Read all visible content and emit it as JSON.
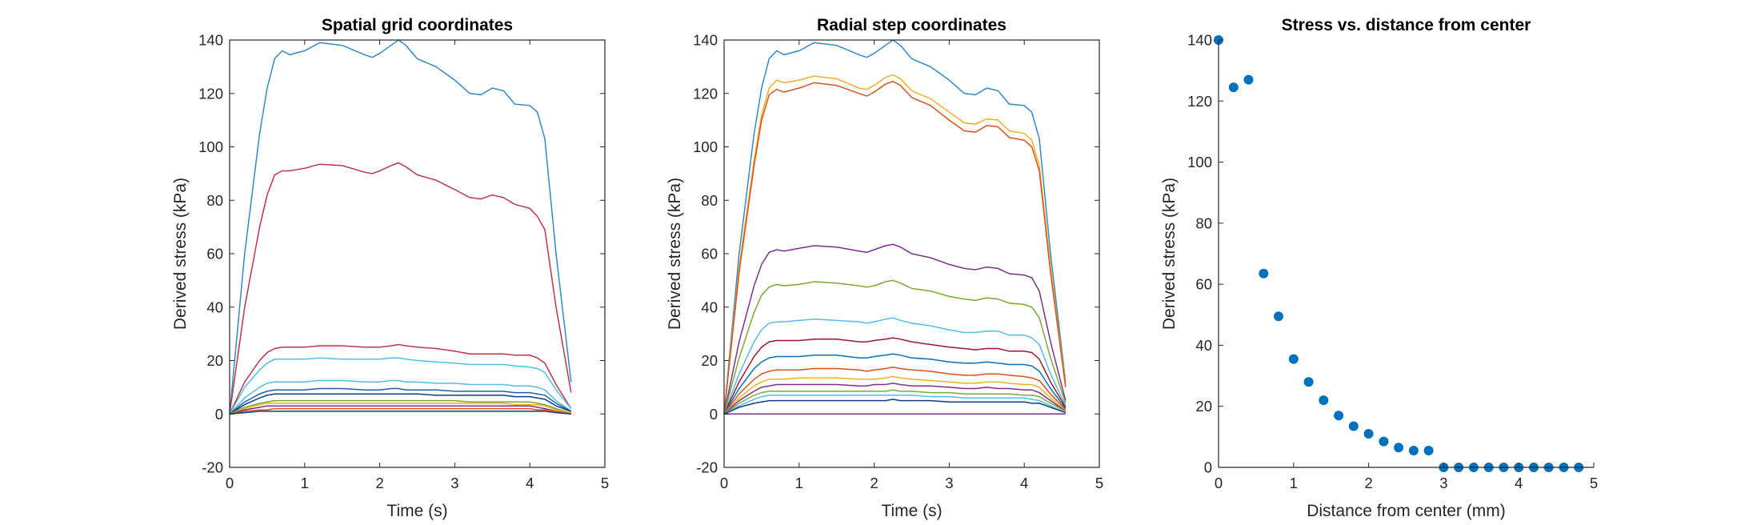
{
  "chart_data": [
    {
      "type": "line",
      "title": "Spatial grid coordinates",
      "xlabel": "Time (s)",
      "ylabel": "Derived stress (kPa)",
      "xlim": [
        0,
        5
      ],
      "ylim": [
        -20,
        140
      ],
      "xticks": [
        "0",
        "1",
        "2",
        "3",
        "4",
        "5"
      ],
      "yticks": [
        "-20",
        "0",
        "20",
        "40",
        "60",
        "80",
        "100",
        "120",
        "140"
      ],
      "x": [
        0,
        0.2,
        0.4,
        0.5,
        0.6,
        0.7,
        0.8,
        1.0,
        1.2,
        1.5,
        1.8,
        1.9,
        2.0,
        2.15,
        2.25,
        2.35,
        2.5,
        2.75,
        3.0,
        3.2,
        3.35,
        3.5,
        3.65,
        3.8,
        4.0,
        4.1,
        4.2,
        4.35,
        4.55
      ],
      "series": [
        {
          "color": "#2e8bc8",
          "values": [
            0,
            60,
            105,
            122,
            133,
            136,
            134.5,
            136,
            139,
            138,
            134.5,
            133.5,
            135,
            138,
            140,
            138,
            133,
            130,
            125,
            120,
            119.5,
            122,
            121,
            116,
            115.5,
            113,
            103,
            60,
            12
          ]
        },
        {
          "color": "#c0334a",
          "values": [
            0,
            40,
            70,
            82,
            89.5,
            91,
            91,
            92,
            93.5,
            93,
            90.5,
            90,
            91,
            93,
            94,
            92.5,
            89.5,
            87.5,
            84,
            81,
            80.5,
            82,
            81,
            78.5,
            77,
            74,
            69,
            40,
            8
          ]
        },
        {
          "color": "#c0334a",
          "values": [
            0,
            12,
            20,
            23,
            24.5,
            25,
            25,
            25,
            25.5,
            25.5,
            25,
            25,
            25,
            25.5,
            26,
            25.5,
            25,
            24.5,
            23.5,
            22.5,
            22.5,
            22.5,
            22.5,
            22,
            22,
            21,
            19,
            11,
            2
          ]
        },
        {
          "color": "#4dbeee",
          "values": [
            0,
            10,
            16.5,
            19,
            20.5,
            20.5,
            20.5,
            20.5,
            21,
            20.5,
            20.5,
            20.5,
            20.5,
            21,
            21,
            20.5,
            20,
            19.5,
            19,
            18.5,
            18.5,
            18.5,
            18.5,
            18,
            17.5,
            17,
            15.5,
            9,
            2
          ]
        },
        {
          "color": "#4dbeee",
          "values": [
            0,
            6,
            10,
            11.5,
            12,
            12,
            12,
            12,
            12.5,
            12.5,
            12,
            12,
            12,
            12.5,
            12.5,
            12,
            12,
            11.5,
            11.5,
            11,
            11,
            11,
            11,
            10.5,
            10.5,
            10,
            9,
            5,
            1
          ]
        },
        {
          "color": "#1f5fa8",
          "values": [
            0,
            4.5,
            7.5,
            8.5,
            9,
            9,
            9,
            9,
            9.5,
            9.5,
            9,
            9,
            9,
            9.5,
            9.5,
            9,
            9,
            9,
            8.5,
            8.5,
            8.5,
            8.5,
            8.5,
            8,
            8,
            7.5,
            7,
            4,
            1
          ]
        },
        {
          "color": "#0b3d8a",
          "values": [
            0,
            3.5,
            6,
            7,
            7.5,
            7.5,
            7.5,
            7.5,
            7.5,
            7.5,
            7.5,
            7.5,
            7.5,
            7.5,
            7.5,
            7.5,
            7.5,
            7,
            7,
            7,
            7,
            7,
            7,
            6.5,
            6.5,
            6,
            5.5,
            3,
            1
          ]
        },
        {
          "color": "#77ac30",
          "values": [
            0,
            2.5,
            4,
            4.5,
            5,
            5,
            5,
            5,
            5,
            5,
            5,
            5,
            5,
            5,
            5,
            5,
            5,
            5,
            5,
            4.5,
            4.5,
            4.5,
            4.5,
            4.5,
            4.5,
            4,
            3.5,
            2,
            0.5
          ]
        },
        {
          "color": "#edb120",
          "values": [
            0,
            2,
            3.5,
            4,
            4,
            4,
            4,
            4,
            4,
            4,
            4,
            4,
            4,
            4,
            4,
            4,
            4,
            4,
            4,
            4,
            4,
            4,
            4,
            3.5,
            3.5,
            3.5,
            3,
            1.5,
            0.5
          ]
        },
        {
          "color": "#7e2f8e",
          "values": [
            0,
            1.5,
            2.5,
            3,
            3,
            3,
            3,
            3,
            3,
            3,
            3,
            3,
            3,
            3,
            3,
            3,
            3,
            3,
            3,
            3,
            3,
            3,
            3,
            3,
            3,
            2.5,
            2,
            1,
            0
          ]
        },
        {
          "color": "#d95319",
          "values": [
            0,
            1,
            1.5,
            1.5,
            2,
            2,
            2,
            2,
            2,
            2,
            2,
            2,
            2,
            2,
            2,
            2,
            2,
            2,
            2,
            2,
            2,
            2,
            2,
            2,
            2,
            1.5,
            1.5,
            1,
            0
          ]
        },
        {
          "color": "#0b3d8a",
          "values": [
            0,
            0.5,
            1,
            1,
            1,
            1,
            1,
            1,
            1,
            1,
            1,
            1,
            1,
            1,
            1,
            1,
            1,
            1,
            1,
            1,
            1,
            1,
            1,
            1,
            1,
            1,
            1,
            0.5,
            0
          ]
        }
      ]
    },
    {
      "type": "line",
      "title": "Radial step coordinates",
      "xlabel": "Time (s)",
      "ylabel": "Derived stress (kPa)",
      "xlim": [
        0,
        5
      ],
      "ylim": [
        -20,
        140
      ],
      "xticks": [
        "0",
        "1",
        "2",
        "3",
        "4",
        "5"
      ],
      "yticks": [
        "-20",
        "0",
        "20",
        "40",
        "60",
        "80",
        "100",
        "120",
        "140"
      ],
      "x": [
        0,
        0.2,
        0.4,
        0.5,
        0.6,
        0.7,
        0.8,
        1.0,
        1.2,
        1.5,
        1.8,
        1.9,
        2.0,
        2.15,
        2.25,
        2.35,
        2.5,
        2.75,
        3.0,
        3.2,
        3.35,
        3.5,
        3.65,
        3.8,
        4.0,
        4.1,
        4.2,
        4.35,
        4.55
      ],
      "series": [
        {
          "color": "#2e8bc8",
          "values": [
            0,
            60,
            105,
            122,
            133,
            136,
            134.5,
            136,
            139,
            138,
            134.5,
            133.5,
            135,
            138,
            140,
            138,
            133,
            130,
            125,
            120,
            119.5,
            122,
            121,
            116,
            115.5,
            113,
            103,
            60,
            12
          ]
        },
        {
          "color": "#edb120",
          "values": [
            0,
            55,
            95,
            112,
            122,
            125,
            124,
            125,
            126.5,
            125.5,
            122,
            121.5,
            123,
            126,
            127,
            125.5,
            121,
            118,
            113,
            109,
            108.5,
            110.5,
            110,
            106,
            105,
            102.5,
            93,
            55,
            11
          ]
        },
        {
          "color": "#d95319",
          "values": [
            0,
            53,
            93,
            110,
            119.5,
            121.5,
            120.5,
            122,
            124,
            123,
            120,
            119,
            120.5,
            123.5,
            124.5,
            123,
            118.5,
            115.5,
            110,
            106,
            105.5,
            108,
            107.5,
            103.5,
            102.5,
            100,
            91,
            53,
            10
          ]
        },
        {
          "color": "#7e2f8e",
          "values": [
            0,
            27,
            48,
            56,
            60.5,
            61.5,
            61,
            62,
            63,
            62.5,
            61,
            60.5,
            61.5,
            63,
            63.5,
            62.5,
            60,
            58.5,
            56,
            54.5,
            54,
            55,
            54.5,
            52.5,
            52,
            51,
            46,
            27,
            5
          ]
        },
        {
          "color": "#77ac30",
          "values": [
            0,
            21,
            38,
            44.5,
            47.5,
            48.5,
            48,
            48.5,
            49.5,
            49,
            48,
            47.5,
            48,
            49.5,
            50,
            49,
            47,
            46,
            44,
            43,
            42.5,
            43.5,
            43,
            41.5,
            41,
            40,
            36,
            21,
            4
          ]
        },
        {
          "color": "#4dbeee",
          "values": [
            0,
            15,
            27,
            31.5,
            34,
            34.5,
            34.5,
            35,
            35.5,
            35,
            34.5,
            34,
            34.5,
            35.5,
            36,
            35,
            34,
            33,
            31.5,
            30.5,
            30.5,
            31,
            31,
            29.5,
            29.5,
            28.5,
            26,
            15,
            3
          ]
        },
        {
          "color": "#a2142f",
          "values": [
            0,
            12,
            21.5,
            25,
            27,
            27.5,
            27.5,
            27.5,
            28,
            28,
            27,
            27,
            27.5,
            28,
            28.5,
            28,
            27,
            26,
            25,
            24.5,
            24,
            24.5,
            24.5,
            23.5,
            23.5,
            23,
            20.5,
            12,
            2.5
          ]
        },
        {
          "color": "#0072bd",
          "values": [
            0,
            9.5,
            17,
            19.5,
            21,
            21.5,
            21.5,
            21.5,
            22,
            22,
            21,
            21,
            21.5,
            22,
            22.5,
            22,
            21,
            20.5,
            19.5,
            19,
            19,
            19.5,
            19,
            18.5,
            18.5,
            18,
            16,
            9.5,
            2
          ]
        },
        {
          "color": "#d95319",
          "values": [
            0,
            7.5,
            13,
            15,
            16,
            16.5,
            16.5,
            16.5,
            17,
            17,
            16.5,
            16,
            16.5,
            17,
            17.5,
            17,
            16.5,
            16,
            15,
            14.5,
            14.5,
            15,
            15,
            14.5,
            14,
            13.5,
            12.5,
            7.5,
            1.5
          ]
        },
        {
          "color": "#edb120",
          "values": [
            0,
            6,
            10.5,
            12,
            13,
            13,
            13,
            13.5,
            13.5,
            13.5,
            13,
            13,
            13,
            13.5,
            14,
            13.5,
            13,
            12.5,
            12,
            11.5,
            11.5,
            12,
            12,
            11.5,
            11,
            11,
            10,
            6,
            1
          ]
        },
        {
          "color": "#7e2f8e",
          "values": [
            0,
            5,
            8.5,
            10,
            10.5,
            11,
            11,
            11,
            11,
            11,
            10.5,
            10.5,
            11,
            11,
            11.5,
            11,
            10.5,
            10.5,
            10,
            9.5,
            9.5,
            10,
            9.5,
            9.5,
            9,
            9,
            8,
            5,
            1
          ]
        },
        {
          "color": "#77ac30",
          "values": [
            0,
            4,
            7,
            8,
            8.5,
            8.5,
            8.5,
            8.5,
            8.5,
            8.5,
            8.5,
            8.5,
            8.5,
            8.5,
            9,
            8.5,
            8.5,
            8,
            8,
            7.5,
            7.5,
            7.5,
            7.5,
            7.5,
            7,
            7,
            6.5,
            4,
            1
          ]
        },
        {
          "color": "#4dbeee",
          "values": [
            0,
            3,
            5.5,
            6.5,
            7,
            7,
            7,
            7,
            7,
            7,
            7,
            7,
            7,
            7,
            7,
            7,
            7,
            6.5,
            6.5,
            6,
            6,
            6,
            6,
            6,
            6,
            5.5,
            5,
            3,
            0.5
          ]
        },
        {
          "color": "#0b3d8a",
          "values": [
            0,
            2.5,
            4,
            4.5,
            5,
            5,
            5,
            5,
            5,
            5,
            5,
            5,
            5,
            5,
            5.5,
            5,
            5,
            5,
            4.5,
            4.5,
            4.5,
            4.5,
            4.5,
            4.5,
            4.5,
            4,
            4,
            2.5,
            0.5
          ]
        },
        {
          "color": "#7e2f8e",
          "values": [
            0,
            0,
            0,
            0,
            0,
            0,
            0,
            0,
            0,
            0,
            0,
            0,
            0,
            0,
            0,
            0,
            0,
            0,
            0,
            0,
            0,
            0,
            0,
            0,
            0,
            0,
            0,
            0,
            0
          ]
        }
      ]
    },
    {
      "type": "scatter",
      "title": "Stress vs. distance from center",
      "xlabel": "Distance from center (mm)",
      "ylabel": "Derived stress (kPa)",
      "xlim": [
        0,
        5
      ],
      "ylim": [
        0,
        140
      ],
      "xticks": [
        "0",
        "1",
        "2",
        "3",
        "4",
        "5"
      ],
      "yticks": [
        "0",
        "20",
        "40",
        "60",
        "80",
        "100",
        "120",
        "140"
      ],
      "color": "#0072bd",
      "x": [
        0,
        0.2,
        0.4,
        0.6,
        0.8,
        1.0,
        1.2,
        1.4,
        1.6,
        1.8,
        2.0,
        2.2,
        2.4,
        2.6,
        2.8,
        3.0,
        3.2,
        3.4,
        3.6,
        3.8,
        4.0,
        4.2,
        4.4,
        4.6,
        4.8
      ],
      "y": [
        140,
        124.5,
        127,
        63.5,
        49.5,
        35.5,
        28,
        22,
        17,
        13.5,
        11,
        8.5,
        6.5,
        5.5,
        5.5,
        0,
        0,
        0,
        0,
        0,
        0,
        0,
        0,
        0,
        0
      ]
    }
  ]
}
